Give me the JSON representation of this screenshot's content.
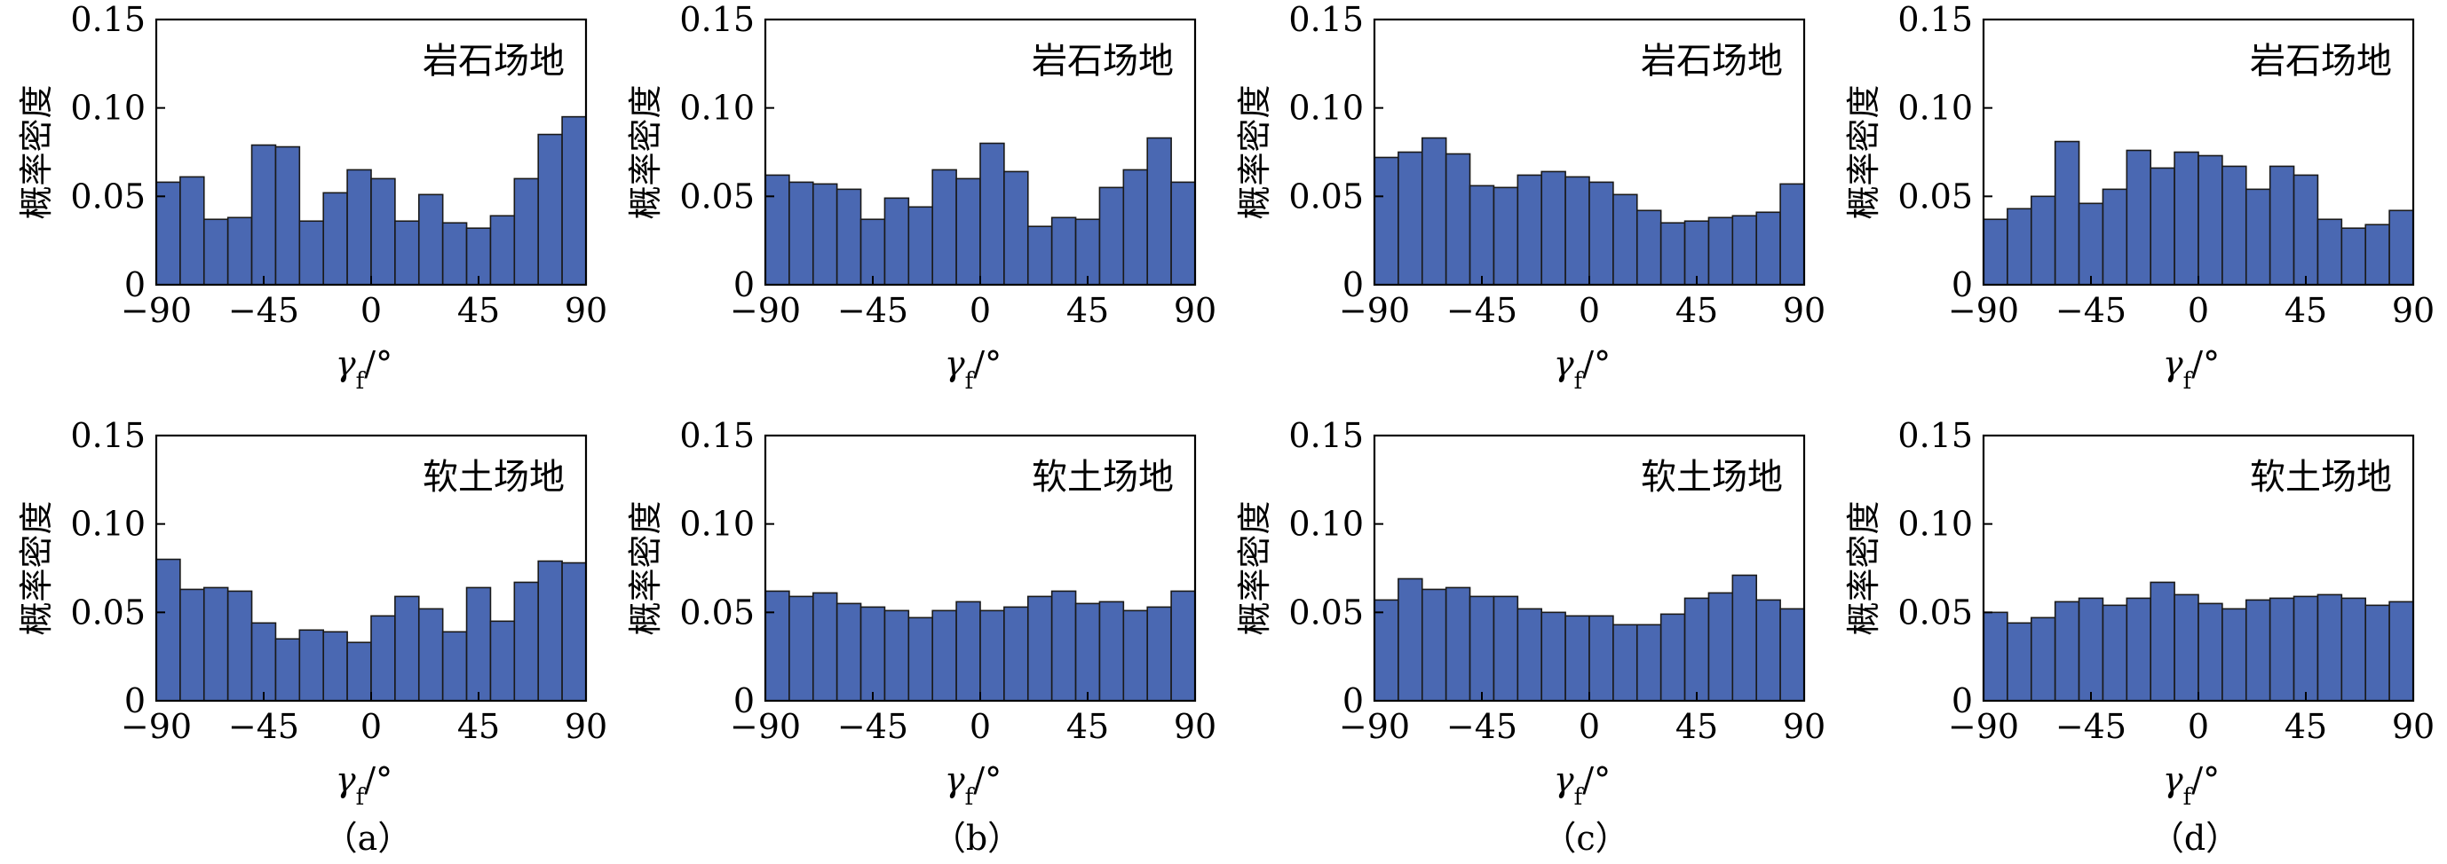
{
  "figure": {
    "subfigure_labels": [
      "（a）",
      "（b）",
      "（c）",
      "（d）"
    ],
    "bar_color": "#4a68b2",
    "bar_edge_color": "#1a1a1a"
  },
  "chart_data": [
    {
      "type": "bar",
      "row": "rock",
      "column": "a",
      "annotation": "岩石场地",
      "xlabel": "γf/°",
      "ylabel": "概率密度",
      "xlim": [
        -90,
        90
      ],
      "ylim": [
        0,
        0.15
      ],
      "xticks": [
        "−90",
        "−45",
        "0",
        "45",
        "90"
      ],
      "yticks": [
        "0",
        "0.05",
        "0.10",
        "0.15"
      ],
      "bin_width": 10,
      "bin_starts": [
        -90,
        -80,
        -70,
        -60,
        -50,
        -40,
        -30,
        -20,
        -10,
        0,
        10,
        20,
        30,
        40,
        50,
        60,
        70,
        80
      ],
      "values": [
        0.058,
        0.061,
        0.037,
        0.038,
        0.079,
        0.078,
        0.036,
        0.052,
        0.065,
        0.06,
        0.036,
        0.051,
        0.035,
        0.032,
        0.039,
        0.06,
        0.085,
        0.095
      ]
    },
    {
      "type": "bar",
      "row": "rock",
      "column": "b",
      "annotation": "岩石场地",
      "xlabel": "γf/°",
      "ylabel": "概率密度",
      "xlim": [
        -90,
        90
      ],
      "ylim": [
        0,
        0.15
      ],
      "xticks": [
        "−90",
        "−45",
        "0",
        "45",
        "90"
      ],
      "yticks": [
        "0",
        "0.05",
        "0.10",
        "0.15"
      ],
      "bin_width": 10,
      "bin_starts": [
        -90,
        -80,
        -70,
        -60,
        -50,
        -40,
        -30,
        -20,
        -10,
        0,
        10,
        20,
        30,
        40,
        50,
        60,
        70,
        80
      ],
      "values": [
        0.062,
        0.058,
        0.057,
        0.054,
        0.037,
        0.049,
        0.044,
        0.065,
        0.06,
        0.08,
        0.064,
        0.033,
        0.038,
        0.037,
        0.055,
        0.065,
        0.083,
        0.058
      ]
    },
    {
      "type": "bar",
      "row": "rock",
      "column": "c",
      "annotation": "岩石场地",
      "xlabel": "γf/°",
      "ylabel": "概率密度",
      "xlim": [
        -90,
        90
      ],
      "ylim": [
        0,
        0.15
      ],
      "xticks": [
        "−90",
        "−45",
        "0",
        "45",
        "90"
      ],
      "yticks": [
        "0",
        "0.05",
        "0.10",
        "0.15"
      ],
      "bin_width": 10,
      "bin_starts": [
        -90,
        -80,
        -70,
        -60,
        -50,
        -40,
        -30,
        -20,
        -10,
        0,
        10,
        20,
        30,
        40,
        50,
        60,
        70,
        80
      ],
      "values": [
        0.072,
        0.075,
        0.083,
        0.074,
        0.056,
        0.055,
        0.062,
        0.064,
        0.061,
        0.058,
        0.051,
        0.042,
        0.035,
        0.036,
        0.038,
        0.039,
        0.041,
        0.057
      ]
    },
    {
      "type": "bar",
      "row": "rock",
      "column": "d",
      "annotation": "岩石场地",
      "xlabel": "γf/°",
      "ylabel": "概率密度",
      "xlim": [
        -90,
        90
      ],
      "ylim": [
        0,
        0.15
      ],
      "xticks": [
        "−90",
        "−45",
        "0",
        "45",
        "90"
      ],
      "yticks": [
        "0",
        "0.05",
        "0.10",
        "0.15"
      ],
      "bin_width": 10,
      "bin_starts": [
        -90,
        -80,
        -70,
        -60,
        -50,
        -40,
        -30,
        -20,
        -10,
        0,
        10,
        20,
        30,
        40,
        50,
        60,
        70,
        80
      ],
      "values": [
        0.037,
        0.043,
        0.05,
        0.081,
        0.046,
        0.054,
        0.076,
        0.066,
        0.075,
        0.073,
        0.067,
        0.054,
        0.067,
        0.062,
        0.037,
        0.032,
        0.034,
        0.042
      ]
    },
    {
      "type": "bar",
      "row": "soft",
      "column": "a",
      "annotation": "软土场地",
      "xlabel": "γf/°",
      "ylabel": "概率密度",
      "xlim": [
        -90,
        90
      ],
      "ylim": [
        0,
        0.15
      ],
      "xticks": [
        "−90",
        "−45",
        "0",
        "45",
        "90"
      ],
      "yticks": [
        "0",
        "0.05",
        "0.10",
        "0.15"
      ],
      "bin_width": 10,
      "bin_starts": [
        -90,
        -80,
        -70,
        -60,
        -50,
        -40,
        -30,
        -20,
        -10,
        0,
        10,
        20,
        30,
        40,
        50,
        60,
        70,
        80
      ],
      "values": [
        0.08,
        0.063,
        0.064,
        0.062,
        0.044,
        0.035,
        0.04,
        0.039,
        0.033,
        0.048,
        0.059,
        0.052,
        0.039,
        0.064,
        0.045,
        0.067,
        0.079,
        0.078
      ]
    },
    {
      "type": "bar",
      "row": "soft",
      "column": "b",
      "annotation": "软土场地",
      "xlabel": "γf/°",
      "ylabel": "概率密度",
      "xlim": [
        -90,
        90
      ],
      "ylim": [
        0,
        0.15
      ],
      "xticks": [
        "−90",
        "−45",
        "0",
        "45",
        "90"
      ],
      "yticks": [
        "0",
        "0.05",
        "0.10",
        "0.15"
      ],
      "bin_width": 10,
      "bin_starts": [
        -90,
        -80,
        -70,
        -60,
        -50,
        -40,
        -30,
        -20,
        -10,
        0,
        10,
        20,
        30,
        40,
        50,
        60,
        70,
        80
      ],
      "values": [
        0.062,
        0.059,
        0.061,
        0.055,
        0.053,
        0.051,
        0.047,
        0.051,
        0.056,
        0.051,
        0.053,
        0.059,
        0.062,
        0.055,
        0.056,
        0.051,
        0.053,
        0.062
      ]
    },
    {
      "type": "bar",
      "row": "soft",
      "column": "c",
      "annotation": "软土场地",
      "xlabel": "γf/°",
      "ylabel": "概率密度",
      "xlim": [
        -90,
        90
      ],
      "ylim": [
        0,
        0.15
      ],
      "xticks": [
        "−90",
        "−45",
        "0",
        "45",
        "90"
      ],
      "yticks": [
        "0",
        "0.05",
        "0.10",
        "0.15"
      ],
      "bin_width": 10,
      "bin_starts": [
        -90,
        -80,
        -70,
        -60,
        -50,
        -40,
        -30,
        -20,
        -10,
        0,
        10,
        20,
        30,
        40,
        50,
        60,
        70,
        80
      ],
      "values": [
        0.057,
        0.069,
        0.063,
        0.064,
        0.059,
        0.059,
        0.052,
        0.05,
        0.048,
        0.048,
        0.043,
        0.043,
        0.049,
        0.058,
        0.061,
        0.071,
        0.057,
        0.052
      ]
    },
    {
      "type": "bar",
      "row": "soft",
      "column": "d",
      "annotation": "软土场地",
      "xlabel": "γf/°",
      "ylabel": "概率密度",
      "xlim": [
        -90,
        90
      ],
      "ylim": [
        0,
        0.15
      ],
      "xticks": [
        "−90",
        "−45",
        "0",
        "45",
        "90"
      ],
      "yticks": [
        "0",
        "0.05",
        "0.10",
        "0.15"
      ],
      "bin_width": 10,
      "bin_starts": [
        -90,
        -80,
        -70,
        -60,
        -50,
        -40,
        -30,
        -20,
        -10,
        0,
        10,
        20,
        30,
        40,
        50,
        60,
        70,
        80
      ],
      "values": [
        0.05,
        0.044,
        0.047,
        0.056,
        0.058,
        0.054,
        0.058,
        0.067,
        0.06,
        0.055,
        0.052,
        0.057,
        0.058,
        0.059,
        0.06,
        0.058,
        0.054,
        0.056
      ]
    }
  ]
}
